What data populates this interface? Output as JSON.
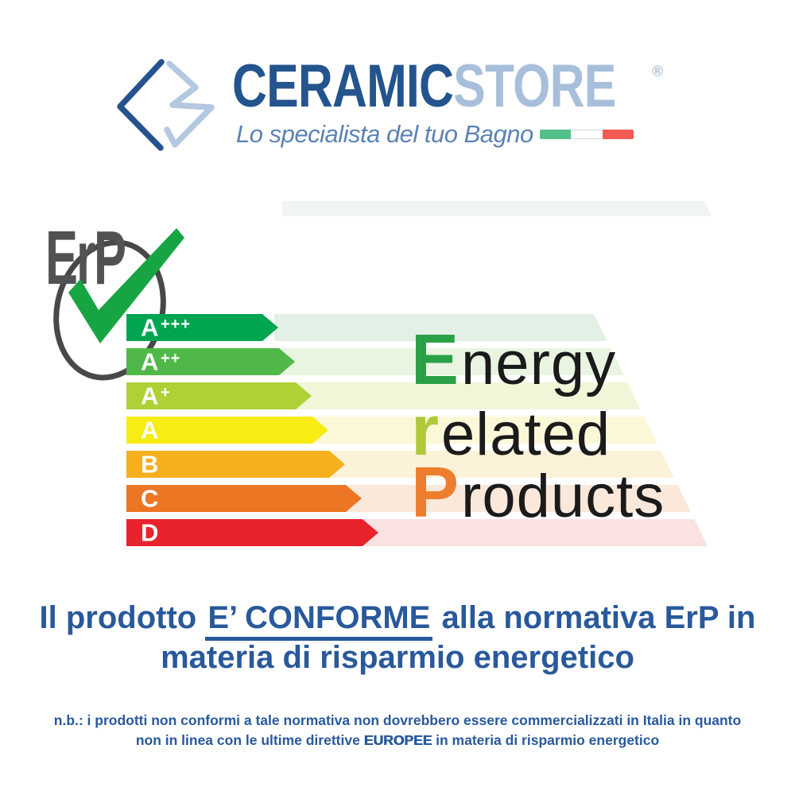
{
  "header": {
    "brand_primary": "CERAMIC",
    "brand_secondary": "STORE",
    "registered_mark": "®",
    "tagline": "Lo specialista del tuo Bagno",
    "brand_primary_color": "#24548e",
    "brand_secondary_color": "#a8bfdb",
    "flag_colors": {
      "green": "#55bf8b",
      "white": "#ffffff",
      "red": "#f25b53"
    }
  },
  "erp_badge": {
    "label": "ErP",
    "text_color": "#515254",
    "ring_color": "#47484a",
    "check_color": "#17a544"
  },
  "chart_data": {
    "type": "bar",
    "title": "Energy related Products efficiency scale",
    "categories": [
      "A+++",
      "A++",
      "A+",
      "A",
      "B",
      "C",
      "D"
    ],
    "rows": [
      {
        "grade": "A",
        "sup": "+++",
        "color": "#00a551",
        "pale": "#e3f0e6",
        "body_width": 171
      },
      {
        "grade": "A",
        "sup": "++",
        "color": "#50b848",
        "pale": "#e9f4e1",
        "body_width": 192
      },
      {
        "grade": "A",
        "sup": "+",
        "color": "#aed136",
        "pale": "#f2f6d9",
        "body_width": 213
      },
      {
        "grade": "A",
        "sup": "",
        "color": "#f7ec13",
        "pale": "#fbf8d8",
        "body_width": 234
      },
      {
        "grade": "B",
        "sup": "",
        "color": "#f6af1d",
        "pale": "#fcf2d9",
        "body_width": 255
      },
      {
        "grade": "C",
        "sup": "",
        "color": "#ec7623",
        "pale": "#fae9da",
        "body_width": 276
      },
      {
        "grade": "D",
        "sup": "",
        "color": "#e9232e",
        "pale": "#fae2e2",
        "body_width": 297
      }
    ]
  },
  "energy_text": {
    "lines": [
      {
        "initial": "E",
        "rest": "nergy",
        "color": "#2aa147"
      },
      {
        "initial": "r",
        "rest": "elated",
        "color": "#b0c83a"
      },
      {
        "initial": "P",
        "rest": "roducts",
        "color": "#ee7d2d"
      }
    ],
    "rest_color": "#1b1b1b"
  },
  "heading": {
    "line1_prefix": "Il prodotto ",
    "line1_emphasis": "E’ CONFORME",
    "line1_suffix": " alla normativa ErP in",
    "line2": "materia di risparmio energetico",
    "color": "#29599b"
  },
  "note": {
    "line1": "n.b.: i prodotti non conformi a tale normativa non dovrebbero essere commercializzati in Italia in quanto",
    "line2_prefix": "non in linea con le ultime direttive ",
    "line2_bold": "EUROPEE",
    "line2_suffix": " in materia di risparmio energetico"
  }
}
